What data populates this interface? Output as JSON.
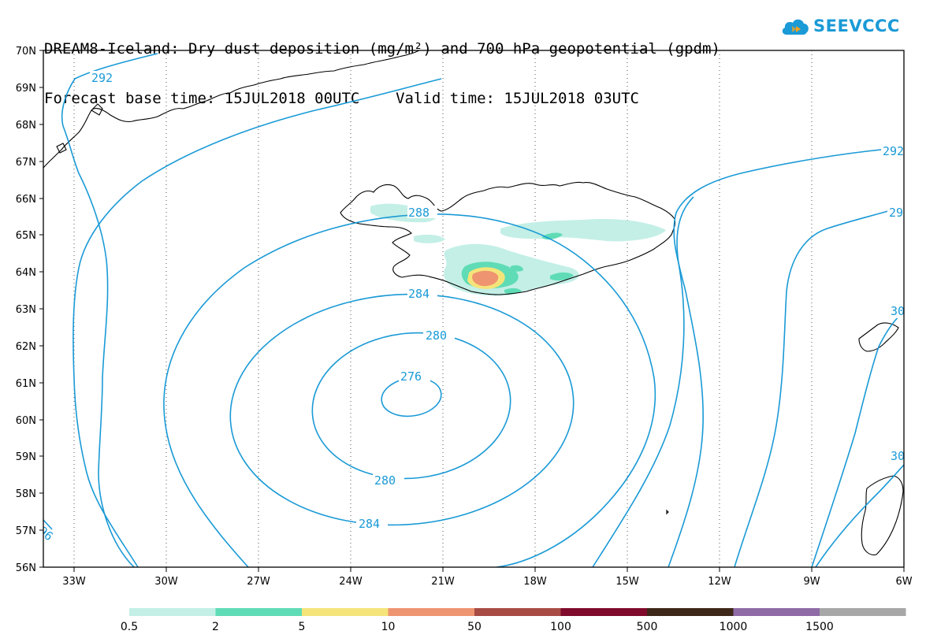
{
  "title": {
    "line1": "DREAM8-Iceland: Dry dust deposition (mg/m²) and 700 hPa geopotential (gpdm)",
    "line2": "Forecast base time: 15JUL2018 00UTC    Valid time: 15JUL2018 03UTC"
  },
  "logo": {
    "text": "SEEVCCC",
    "icon": "cloud-icon"
  },
  "axes": {
    "lat_labels": [
      "70N",
      "69N",
      "68N",
      "67N",
      "66N",
      "65N",
      "64N",
      "63N",
      "62N",
      "61N",
      "60N",
      "59N",
      "58N",
      "57N",
      "56N"
    ],
    "lon_labels": [
      "33W",
      "30W",
      "27W",
      "24W",
      "21W",
      "18W",
      "15W",
      "12W",
      "9W",
      "6W"
    ]
  },
  "contour_labels": {
    "c292a": "292",
    "c292b": "292",
    "c29": "29",
    "c288": "288",
    "c284a": "284",
    "c284b": "284",
    "c280a": "280",
    "c280b": "280",
    "c276": "276",
    "c30a": "30",
    "c30b": "30",
    "c96": "96"
  },
  "legend": {
    "labels": [
      "0.5",
      "2",
      "5",
      "10",
      "50",
      "100",
      "500",
      "1000",
      "1500"
    ],
    "colors": [
      "#c3efe6",
      "#5fdcb5",
      "#f5e47a",
      "#ee9470",
      "#a84b45",
      "#7f0a2b",
      "#3d2718",
      "#8f6ba6",
      "#a7a7a7"
    ]
  },
  "colors": {
    "contour": "#1a9ad6",
    "coast": "#000000"
  }
}
